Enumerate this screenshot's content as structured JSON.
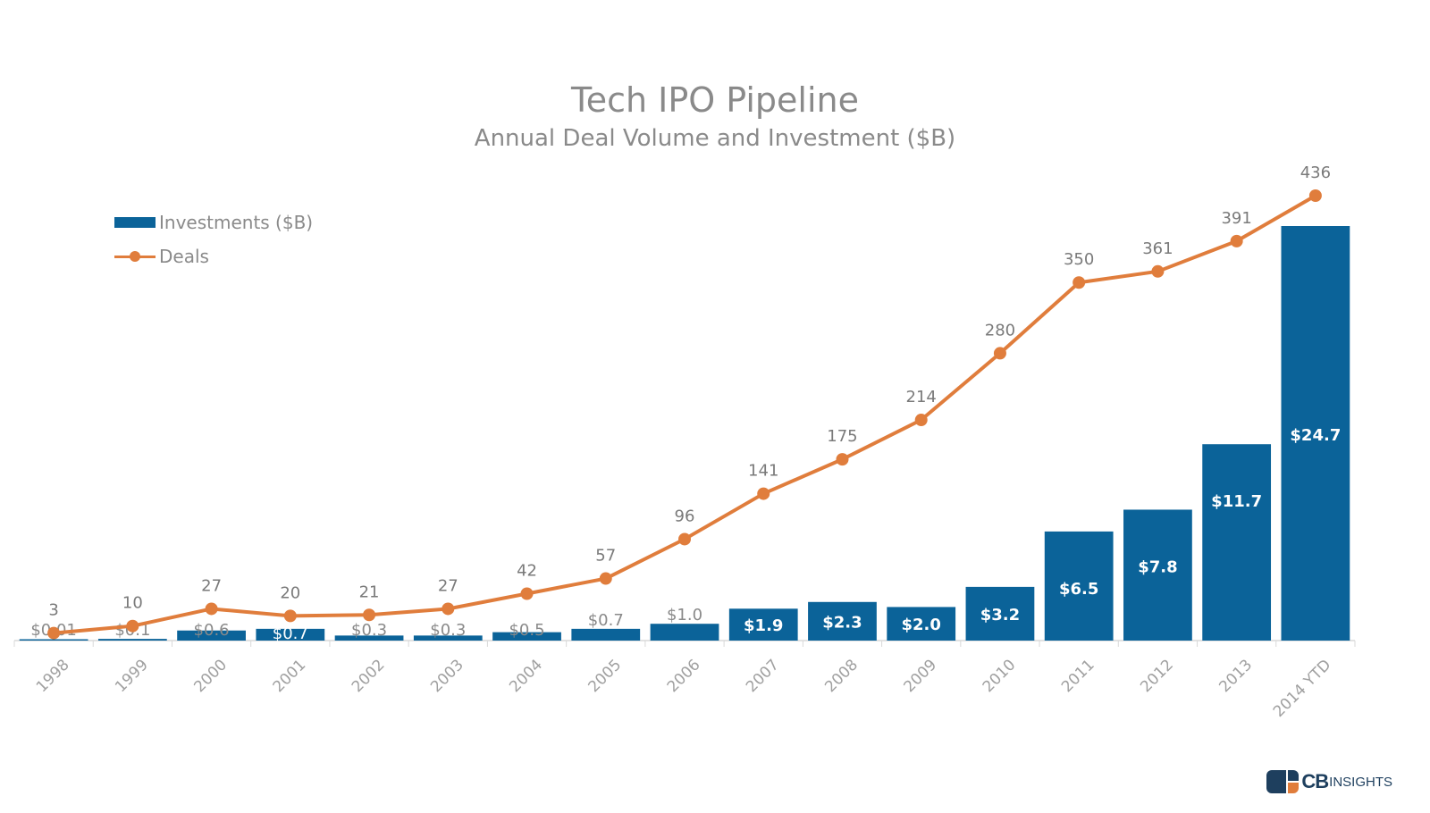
{
  "chart_data": {
    "type": "bar+line",
    "title": "Tech IPO Pipeline",
    "subtitle": "Annual Deal Volume and Investment ($B)",
    "xlabel": "",
    "ylabel": "",
    "categories": [
      "1998",
      "1999",
      "2000",
      "2001",
      "2002",
      "2003",
      "2004",
      "2005",
      "2006",
      "2007",
      "2008",
      "2009",
      "2010",
      "2011",
      "2012",
      "2013",
      "2014 YTD"
    ],
    "series": [
      {
        "name": "Investments ($B)",
        "type": "bar",
        "color": "#0b6399",
        "values": [
          0.01,
          0.1,
          0.6,
          0.7,
          0.3,
          0.3,
          0.5,
          0.7,
          1.0,
          1.9,
          2.3,
          2.0,
          3.2,
          6.5,
          7.8,
          11.7,
          24.7
        ],
        "labels": [
          "$0.01",
          "$0.1",
          "$0.6",
          "$0.7",
          "$0.3",
          "$0.3",
          "$0.5",
          "$0.7",
          "$1.0",
          "$1.9",
          "$2.3",
          "$2.0",
          "$3.2",
          "$6.5",
          "$7.8",
          "$11.7",
          "$24.7"
        ]
      },
      {
        "name": "Deals",
        "type": "line",
        "color": "#e07d3c",
        "values": [
          3,
          10,
          27,
          20,
          21,
          27,
          42,
          57,
          96,
          141,
          175,
          214,
          280,
          350,
          361,
          391,
          436
        ],
        "labels": [
          "3",
          "10",
          "27",
          "20",
          "21",
          "27",
          "42",
          "57",
          "96",
          "141",
          "175",
          "214",
          "280",
          "350",
          "361",
          "391",
          "436"
        ]
      }
    ],
    "bar_ylim": [
      0,
      25
    ],
    "line_ylim": [
      0,
      440
    ],
    "grid": false,
    "legend_position": "top-left"
  },
  "legend": {
    "investments_label": "Investments ($B)",
    "deals_label": "Deals"
  },
  "logo": {
    "cb": "CB",
    "insights": "INSIGHTS"
  }
}
